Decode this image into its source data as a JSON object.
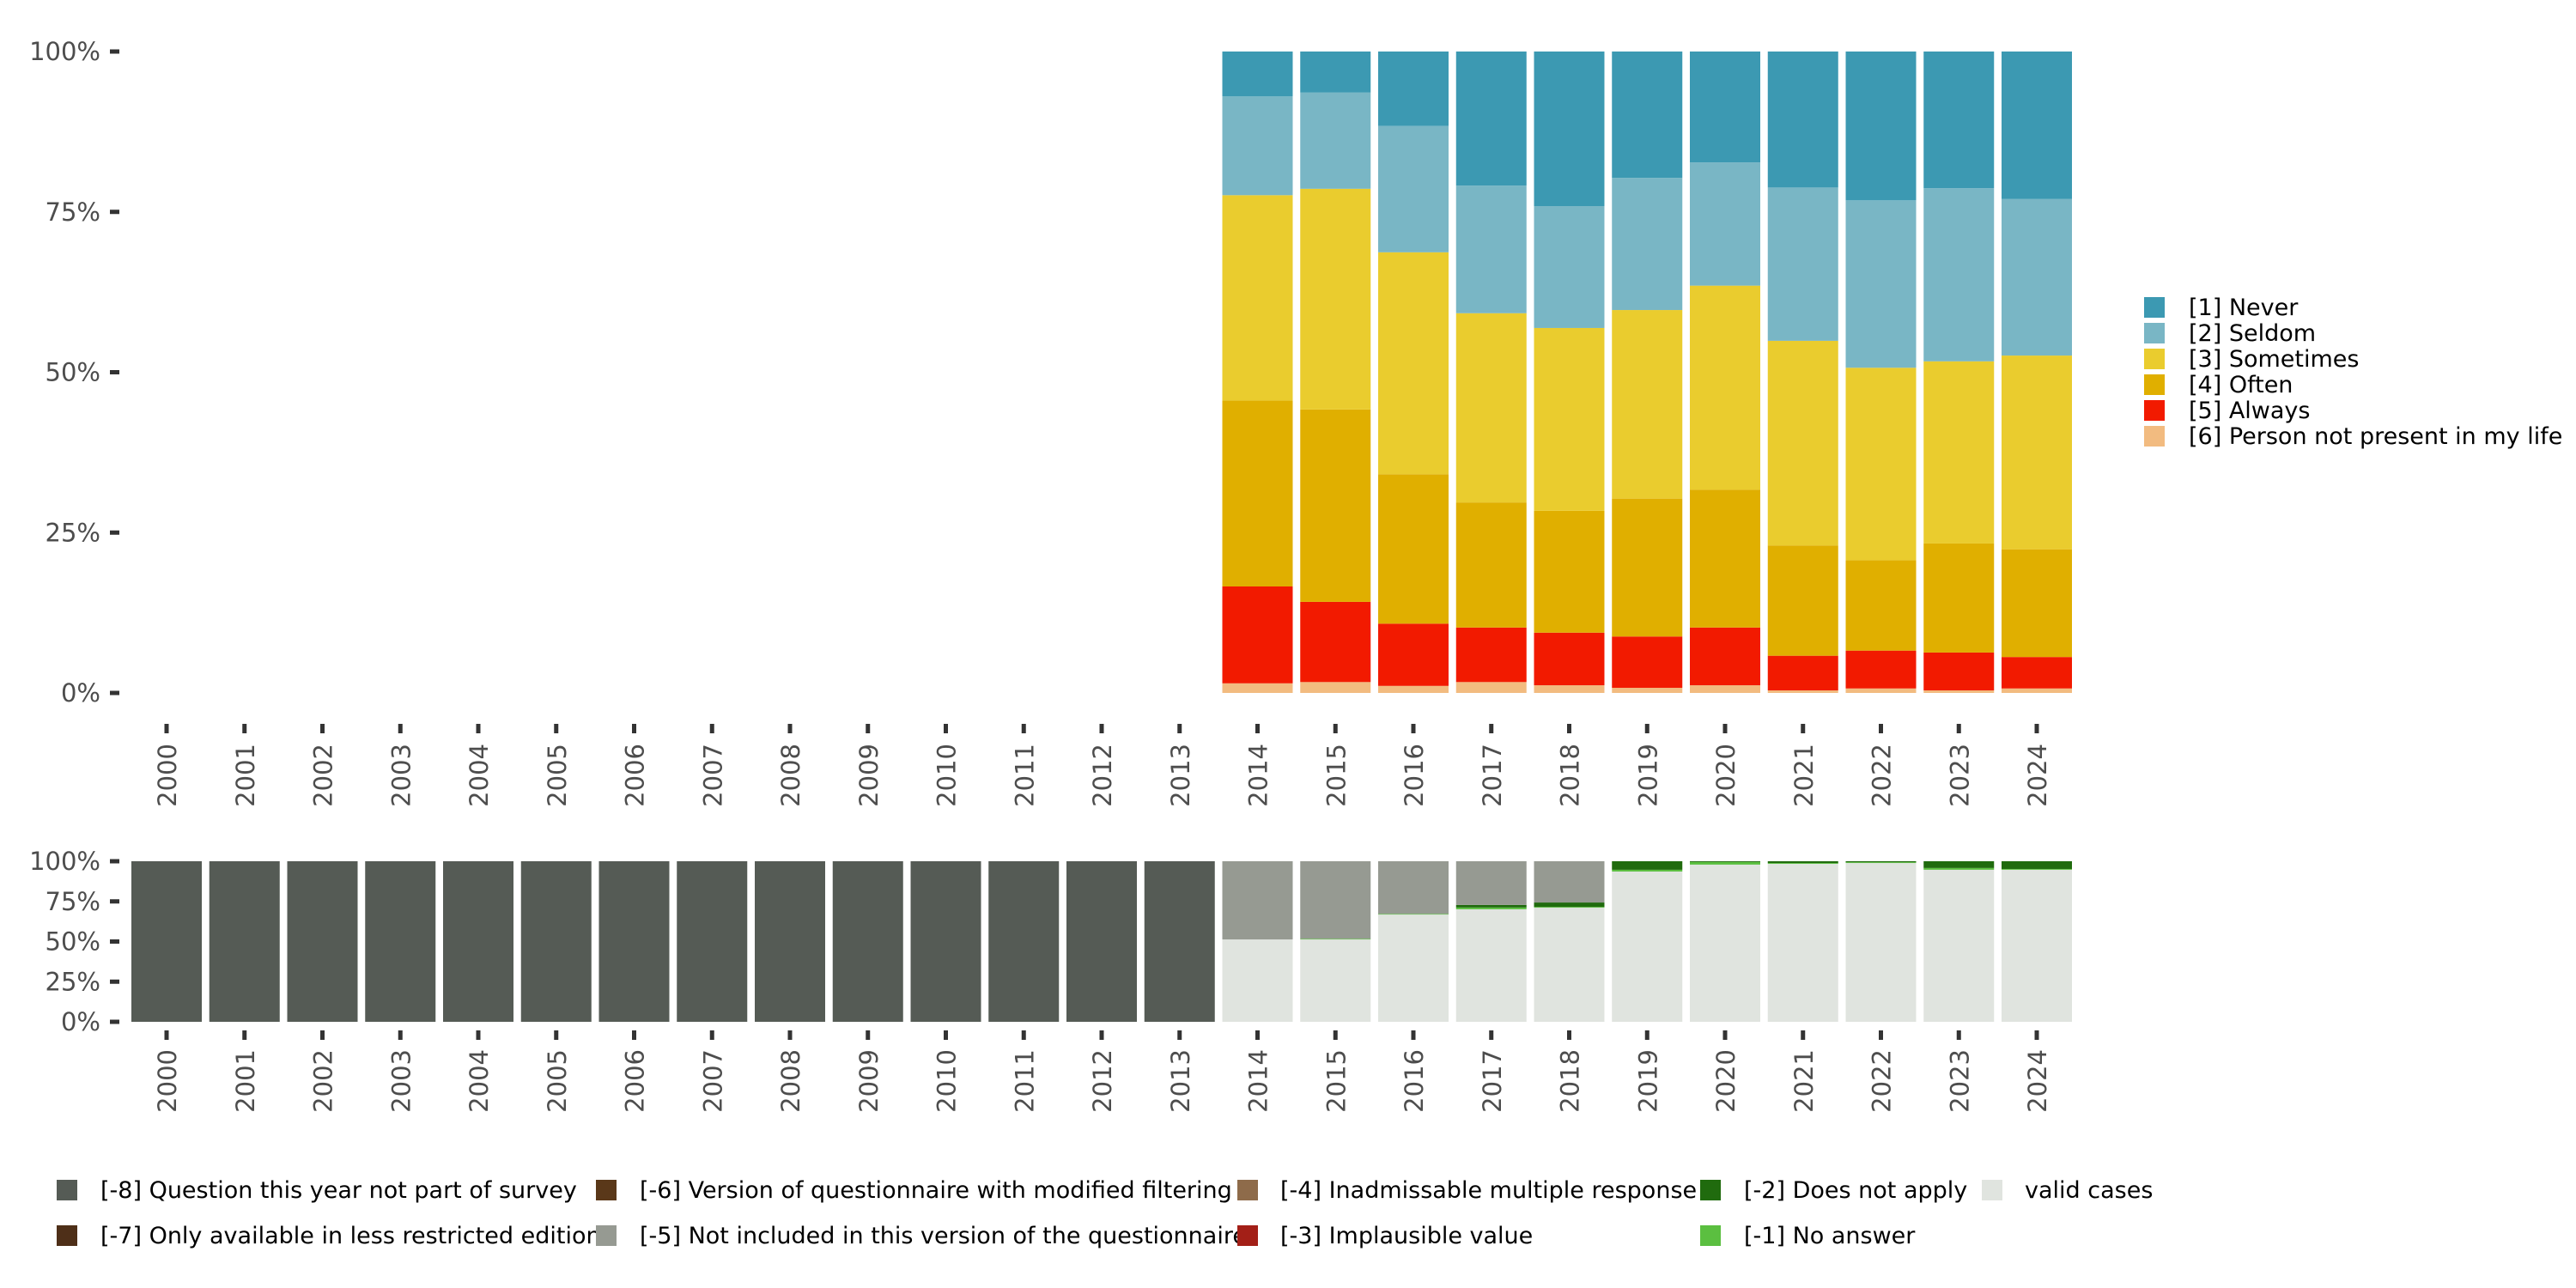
{
  "chart_data": [
    {
      "type": "bar",
      "stacked": "percent",
      "title": "",
      "xlabel": "",
      "ylabel": "",
      "ylim": [
        0,
        100
      ],
      "y_ticks": [
        "0%",
        "25%",
        "50%",
        "75%",
        "100%"
      ],
      "y_tick_values": [
        0,
        25,
        50,
        75,
        100
      ],
      "grid": false,
      "legend_position": "right",
      "categories": [
        "2000",
        "2001",
        "2002",
        "2003",
        "2004",
        "2005",
        "2006",
        "2007",
        "2008",
        "2009",
        "2010",
        "2011",
        "2012",
        "2013",
        "2014",
        "2015",
        "2016",
        "2017",
        "2018",
        "2019",
        "2020",
        "2021",
        "2022",
        "2023",
        "2024"
      ],
      "series": [
        {
          "name": "[6] Person not present in my life",
          "color": "#f2bb80",
          "values": [
            null,
            null,
            null,
            null,
            null,
            null,
            null,
            null,
            null,
            null,
            null,
            null,
            null,
            null,
            1.5,
            1.7,
            1.1,
            1.7,
            1.2,
            0.8,
            1.2,
            0.4,
            0.7,
            0.4,
            0.7
          ]
        },
        {
          "name": "[5] Always",
          "color": "#f21a00",
          "values": [
            null,
            null,
            null,
            null,
            null,
            null,
            null,
            null,
            null,
            null,
            null,
            null,
            null,
            null,
            15.1,
            12.5,
            9.7,
            8.5,
            8.2,
            8.0,
            9.0,
            5.4,
            5.9,
            5.9,
            4.9
          ]
        },
        {
          "name": "[4] Often",
          "color": "#e0af00",
          "values": [
            null,
            null,
            null,
            null,
            null,
            null,
            null,
            null,
            null,
            null,
            null,
            null,
            null,
            null,
            29.0,
            30.0,
            23.3,
            19.5,
            19.0,
            21.5,
            21.5,
            17.2,
            14.1,
            17.0,
            16.8
          ]
        },
        {
          "name": "[3] Sometimes",
          "color": "#eacc2e",
          "values": [
            null,
            null,
            null,
            null,
            null,
            null,
            null,
            null,
            null,
            null,
            null,
            null,
            null,
            null,
            32.0,
            34.4,
            34.6,
            29.5,
            28.5,
            29.4,
            31.8,
            31.9,
            30.0,
            28.4,
            30.2
          ]
        },
        {
          "name": "[2] Seldom",
          "color": "#79b6c5",
          "values": [
            null,
            null,
            null,
            null,
            null,
            null,
            null,
            null,
            null,
            null,
            null,
            null,
            null,
            null,
            15.4,
            15.0,
            19.7,
            19.9,
            19.0,
            20.6,
            19.2,
            23.9,
            26.1,
            27.0,
            24.4
          ]
        },
        {
          "name": "[1] Never",
          "color": "#3c99b2",
          "values": [
            null,
            null,
            null,
            null,
            null,
            null,
            null,
            null,
            null,
            null,
            null,
            null,
            null,
            null,
            7.0,
            6.4,
            11.6,
            20.9,
            24.1,
            19.7,
            17.3,
            21.2,
            23.2,
            21.3,
            23.0
          ]
        }
      ],
      "legend": [
        {
          "label": "[1] Never",
          "color": "#3c99b2"
        },
        {
          "label": "[2] Seldom",
          "color": "#79b6c5"
        },
        {
          "label": "[3] Sometimes",
          "color": "#eacc2e"
        },
        {
          "label": "[4] Often",
          "color": "#e0af00"
        },
        {
          "label": "[5] Always",
          "color": "#f21a00"
        },
        {
          "label": "[6] Person not present in my life",
          "color": "#f2bb80"
        }
      ]
    },
    {
      "type": "bar",
      "stacked": "percent",
      "title": "",
      "xlabel": "",
      "ylabel": "",
      "ylim": [
        0,
        100
      ],
      "y_ticks": [
        "0%",
        "25%",
        "50%",
        "75%",
        "100%"
      ],
      "y_tick_values": [
        0,
        25,
        50,
        75,
        100
      ],
      "grid": false,
      "legend_position": "bottom",
      "categories": [
        "2000",
        "2001",
        "2002",
        "2003",
        "2004",
        "2005",
        "2006",
        "2007",
        "2008",
        "2009",
        "2010",
        "2011",
        "2012",
        "2013",
        "2014",
        "2015",
        "2016",
        "2017",
        "2018",
        "2019",
        "2020",
        "2021",
        "2022",
        "2023",
        "2024"
      ],
      "series": [
        {
          "name": "valid cases",
          "color": "#e0e4df",
          "values": [
            0,
            0,
            0,
            0,
            0,
            0,
            0,
            0,
            0,
            0,
            0,
            0,
            0,
            0,
            51.3,
            51.3,
            66.8,
            70.1,
            71.1,
            93.6,
            97.9,
            98.4,
            98.9,
            94.7,
            94.7
          ]
        },
        {
          "name": "[-1] No answer",
          "color": "#5bbf40",
          "values": [
            0,
            0,
            0,
            0,
            0,
            0,
            0,
            0,
            0,
            0,
            0,
            0,
            0,
            0,
            0,
            0.4,
            0.4,
            1.1,
            0.5,
            1.1,
            1.6,
            0.5,
            0.5,
            1.1,
            0.5
          ]
        },
        {
          "name": "[-2] Does not apply",
          "color": "#206b0e",
          "values": [
            0,
            0,
            0,
            0,
            0,
            0,
            0,
            0,
            0,
            0,
            0,
            0,
            0,
            0,
            0,
            0,
            0,
            1.6,
            2.7,
            5.3,
            0.5,
            1.1,
            0.6,
            4.2,
            4.8
          ]
        },
        {
          "name": "[-5] Not included in this version of the questionnaire",
          "color": "#969a92",
          "values": [
            0,
            0,
            0,
            0,
            0,
            0,
            0,
            0,
            0,
            0,
            0,
            0,
            0,
            0,
            48.7,
            48.3,
            32.8,
            27.2,
            25.7,
            0,
            0,
            0,
            0,
            0,
            0
          ]
        },
        {
          "name": "[-8] Question this year not part of survey",
          "color": "#555b55",
          "values": [
            100,
            100,
            100,
            100,
            100,
            100,
            100,
            100,
            100,
            100,
            100,
            100,
            100,
            100,
            0,
            0,
            0,
            0,
            0,
            0,
            0,
            0,
            0,
            0,
            0
          ]
        }
      ],
      "legend": [
        {
          "label": "[-8] Question this year not part of survey",
          "color": "#555b55"
        },
        {
          "label": "[-7] Only available in less restricted edition",
          "color": "#4e2f18"
        },
        {
          "label": "[-6] Version of questionnaire with modified filtering",
          "color": "#5a3819"
        },
        {
          "label": "[-5] Not included in this version of the questionnaire",
          "color": "#969a92"
        },
        {
          "label": "[-4] Inadmissable multiple response",
          "color": "#8e6b4a"
        },
        {
          "label": "[-3] Implausible value",
          "color": "#a31f17"
        },
        {
          "label": "[-2] Does not apply",
          "color": "#206b0e"
        },
        {
          "label": "[-1] No answer",
          "color": "#5bbf40"
        },
        {
          "label": "valid cases",
          "color": "#e0e4df"
        }
      ]
    }
  ]
}
